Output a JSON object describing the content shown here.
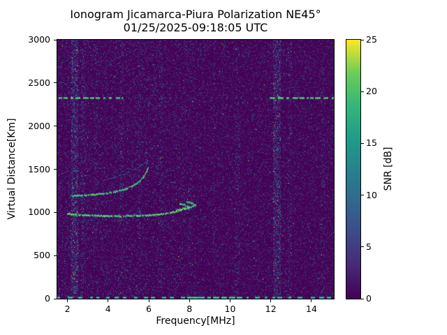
{
  "chart_data": {
    "type": "heatmap",
    "title": "Ionogram Jicamarca-Piura Polarization NE45°",
    "subtitle": "01/25/2025-09:18:05 UTC",
    "xlabel": "Frequency[MHz]",
    "ylabel": "Virtual Distance[Km]",
    "xlim": [
      1.5,
      15.1
    ],
    "ylim": [
      0,
      3000
    ],
    "x_ticks": [
      2,
      4,
      6,
      8,
      10,
      12,
      14
    ],
    "y_ticks": [
      0,
      500,
      1000,
      1500,
      2000,
      2500,
      3000
    ],
    "grid": false,
    "colorbar": {
      "label": "SNR [dB]",
      "min": 0,
      "max": 25,
      "ticks": [
        0,
        5,
        10,
        15,
        20,
        25
      ],
      "colormap": "viridis",
      "stops": [
        [
          0.0,
          "#440154"
        ],
        [
          0.125,
          "#482878"
        ],
        [
          0.25,
          "#3e4a89"
        ],
        [
          0.375,
          "#31688e"
        ],
        [
          0.5,
          "#26828e"
        ],
        [
          0.625,
          "#1f9e89"
        ],
        [
          0.75,
          "#35b779"
        ],
        [
          0.875,
          "#6dcd59"
        ],
        [
          1.0,
          "#fde725"
        ]
      ]
    },
    "background_snr_db": 0,
    "noise": {
      "speckle_density_low_freq": 0.1,
      "speckle_density_high_freq": 0.075,
      "low_high_split_mhz": 8.3,
      "bright_fraction": 0.02
    },
    "vertical_noise_bands": [
      {
        "freq_mhz": 2.35,
        "width_mhz": 0.35,
        "density": 0.3,
        "bright": 0.1
      },
      {
        "freq_mhz": 2.8,
        "width_mhz": 0.25,
        "density": 0.12,
        "bright": 0.04
      },
      {
        "freq_mhz": 3.4,
        "width_mhz": 0.2,
        "density": 0.05,
        "bright": 0.02
      },
      {
        "freq_mhz": 4.65,
        "width_mhz": 0.2,
        "density": 0.07,
        "bright": 0.02
      },
      {
        "freq_mhz": 5.55,
        "width_mhz": 0.15,
        "density": 0.05,
        "bright": 0.02
      },
      {
        "freq_mhz": 6.6,
        "width_mhz": 0.2,
        "density": 0.06,
        "bright": 0.02
      },
      {
        "freq_mhz": 9.2,
        "width_mhz": 0.15,
        "density": 0.05,
        "bright": 0.02
      },
      {
        "freq_mhz": 10.35,
        "width_mhz": 0.25,
        "density": 0.07,
        "bright": 0.03
      },
      {
        "freq_mhz": 12.3,
        "width_mhz": 0.4,
        "density": 0.28,
        "bright": 0.1
      },
      {
        "freq_mhz": 12.95,
        "width_mhz": 0.2,
        "density": 0.1,
        "bright": 0.04
      },
      {
        "freq_mhz": 14.55,
        "width_mhz": 0.2,
        "density": 0.06,
        "bright": 0.03
      }
    ],
    "interference_lines": [
      {
        "km": 2330,
        "snr_db": 24,
        "thickness": 3,
        "dash_on": 6,
        "dash_off": 3,
        "segments_mhz": [
          [
            1.6,
            4.7
          ],
          [
            11.95,
            15.1
          ]
        ]
      },
      {
        "km": 2330,
        "snr_db": 13,
        "thickness": 1,
        "dash_on": 2,
        "dash_off": 10,
        "segments_mhz": [
          [
            4.7,
            11.95
          ]
        ]
      },
      {
        "km": 905,
        "snr_db": 9,
        "thickness": 1,
        "dash_on": 2,
        "dash_off": 5,
        "segments_mhz": [
          [
            1.9,
            8.4
          ]
        ]
      },
      {
        "km": 5,
        "snr_db": 23,
        "thickness": 3,
        "dash_on": 5,
        "dash_off": 6,
        "segments_mhz": [
          [
            1.5,
            15.1
          ]
        ]
      },
      {
        "km": 5,
        "snr_db": 24,
        "thickness": 3,
        "dash_on": 7,
        "dash_off": 3,
        "segments_mhz": [
          [
            7.9,
            10.6
          ]
        ]
      }
    ],
    "echo_traces": [
      {
        "name": "f-layer-main-trace",
        "snr_db": 23,
        "thickness": 2,
        "points_mhz_km": [
          [
            1.9,
            985
          ],
          [
            2.4,
            972
          ],
          [
            3.0,
            963
          ],
          [
            3.8,
            957
          ],
          [
            4.6,
            955
          ],
          [
            5.4,
            959
          ],
          [
            6.0,
            965
          ],
          [
            6.5,
            974
          ],
          [
            6.9,
            986
          ],
          [
            7.2,
            1000
          ],
          [
            7.45,
            1016
          ],
          [
            7.65,
            1034
          ]
        ]
      },
      {
        "name": "cusp-hook-o-mode",
        "snr_db": 22,
        "thickness": 2,
        "points_mhz_km": [
          [
            7.35,
            1022
          ],
          [
            7.7,
            1040
          ],
          [
            7.95,
            1062
          ],
          [
            7.75,
            1088
          ],
          [
            7.5,
            1098
          ]
        ]
      },
      {
        "name": "cusp-hook-x-mode",
        "snr_db": 22,
        "thickness": 2,
        "points_mhz_km": [
          [
            7.7,
            1035
          ],
          [
            8.05,
            1056
          ],
          [
            8.3,
            1080
          ],
          [
            8.1,
            1108
          ],
          [
            7.85,
            1120
          ]
        ]
      },
      {
        "name": "upper-echo-trace",
        "snr_db": 22,
        "thickness": 2,
        "points_mhz_km": [
          [
            2.15,
            1188
          ],
          [
            2.7,
            1194
          ],
          [
            3.3,
            1204
          ],
          [
            3.9,
            1220
          ],
          [
            4.4,
            1242
          ],
          [
            4.85,
            1272
          ],
          [
            5.2,
            1308
          ],
          [
            5.5,
            1352
          ],
          [
            5.72,
            1408
          ],
          [
            5.88,
            1470
          ],
          [
            5.95,
            1520
          ]
        ]
      },
      {
        "name": "faint-upper-arc",
        "snr_db": 11,
        "thickness": 1,
        "points_mhz_km": [
          [
            3.75,
            1370
          ],
          [
            4.3,
            1405
          ],
          [
            4.85,
            1450
          ],
          [
            5.3,
            1500
          ],
          [
            5.65,
            1550
          ],
          [
            5.92,
            1600
          ]
        ]
      }
    ]
  }
}
